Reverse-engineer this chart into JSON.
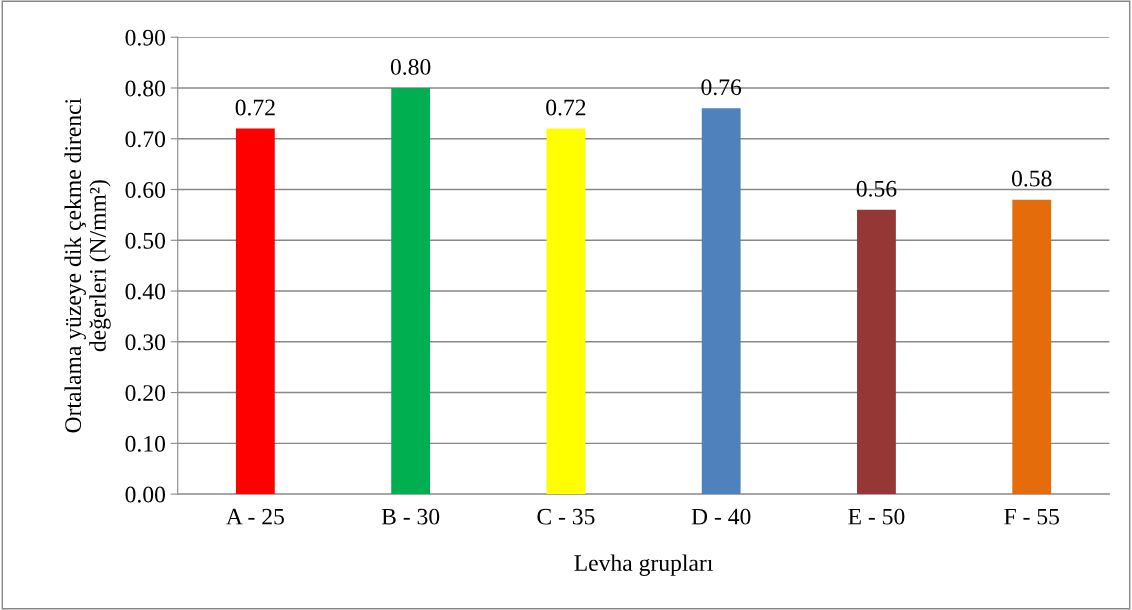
{
  "chart_data": {
    "type": "bar",
    "xlabel": "Levha grupları",
    "ylabel": "Ortalama yüzeye dik çekme direnci\ndeğerleri (N/mm²)",
    "categories": [
      "A - 25",
      "B - 30",
      "C - 35",
      "D - 40",
      "E - 50",
      "F - 55"
    ],
    "values": [
      0.72,
      0.8,
      0.72,
      0.76,
      0.56,
      0.58
    ],
    "colors": [
      "#ff0000",
      "#00b050",
      "#ffff00",
      "#4f81bd",
      "#953735",
      "#e46c0a"
    ],
    "ylim": [
      0,
      0.9
    ],
    "yticks": [
      {
        "value": 0,
        "label": "0.00"
      },
      {
        "value": 0.1,
        "label": "0.10"
      },
      {
        "value": 0.2,
        "label": "0.20"
      },
      {
        "value": 0.3,
        "label": "0.30"
      },
      {
        "value": 0.4,
        "label": "0.40"
      },
      {
        "value": 0.5,
        "label": "0.50"
      },
      {
        "value": 0.6,
        "label": "0.60"
      },
      {
        "value": 0.7,
        "label": "0.70"
      },
      {
        "value": 0.8,
        "label": "0.80"
      },
      {
        "value": 0.9,
        "label": "0.90"
      }
    ],
    "value_labels": [
      "0.72",
      "0.80",
      "0.72",
      "0.76",
      "0.56",
      "0.58"
    ],
    "grid": "y",
    "legend": false
  }
}
